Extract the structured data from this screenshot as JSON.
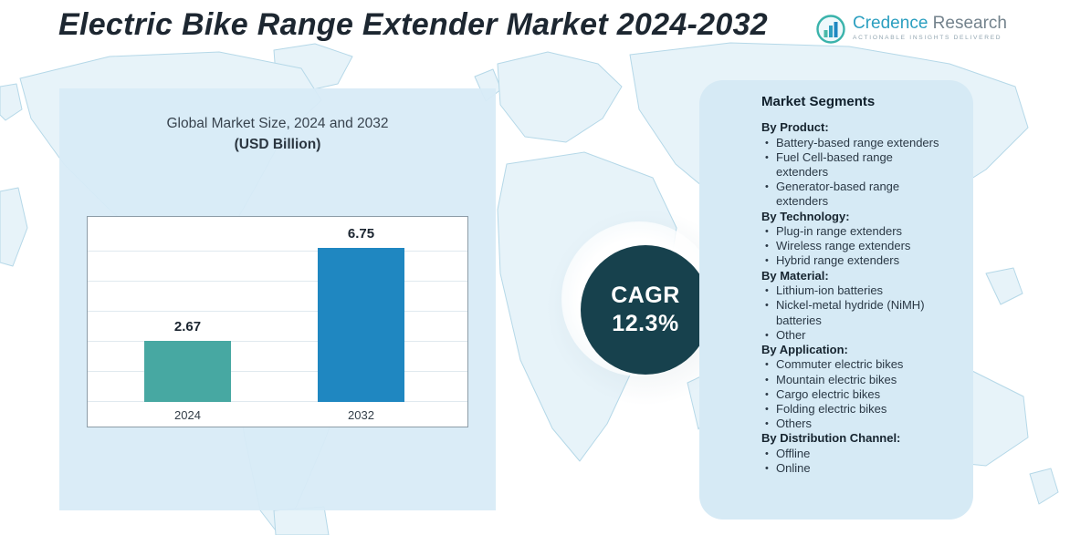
{
  "header": {
    "title": "Electric Bike Range Extender Market 2024-2032",
    "logo": {
      "brand_part1": "Credence",
      "brand_part2": "Research",
      "tagline": "ACTIONABLE INSIGHTS DELIVERED"
    }
  },
  "chart_panel": {
    "title_line1": "Global Market Size, 2024 and 2032",
    "title_line2": "(USD Billion)"
  },
  "chart_data": {
    "type": "bar",
    "title": "Global Market Size, 2024 and 2032 (USD Billion)",
    "categories": [
      "2024",
      "2032"
    ],
    "values": [
      2.67,
      6.75
    ],
    "data_labels": [
      "2.67",
      "6.75"
    ],
    "xlabel": "",
    "ylabel": "USD Billion",
    "ylim": [
      0,
      7.5
    ],
    "grid": true,
    "legend": false,
    "colors": [
      "#47a8a2",
      "#1f87c1"
    ]
  },
  "cagr": {
    "label": "CAGR",
    "value": "12.3%"
  },
  "segments": {
    "title": "Market Segments",
    "groups": [
      {
        "heading": "By Product:",
        "items": [
          "Battery-based range extenders",
          "Fuel Cell-based range extenders",
          "Generator-based range extenders"
        ]
      },
      {
        "heading": "By Technology:",
        "items": [
          "Plug-in range extenders",
          "Wireless range extenders",
          "Hybrid range extenders"
        ]
      },
      {
        "heading": "By Material:",
        "items": [
          "Lithium-ion batteries",
          "Nickel-metal hydride (NiMH) batteries",
          "Other"
        ]
      },
      {
        "heading": "By Application:",
        "items": [
          "Commuter electric bikes",
          "Mountain electric bikes",
          "Cargo electric bikes",
          "Folding electric bikes",
          "Others"
        ]
      },
      {
        "heading": "By Distribution Channel:",
        "items": [
          "Offline",
          "Online"
        ]
      }
    ]
  },
  "theme": {
    "panel_blue": "#d6eaf5",
    "cagr_circle": "#17414d",
    "bar_2024": "#47a8a2",
    "bar_2032": "#1f87c1",
    "map_fill": "#e7f3f9",
    "map_stroke": "#b5d8e8"
  }
}
